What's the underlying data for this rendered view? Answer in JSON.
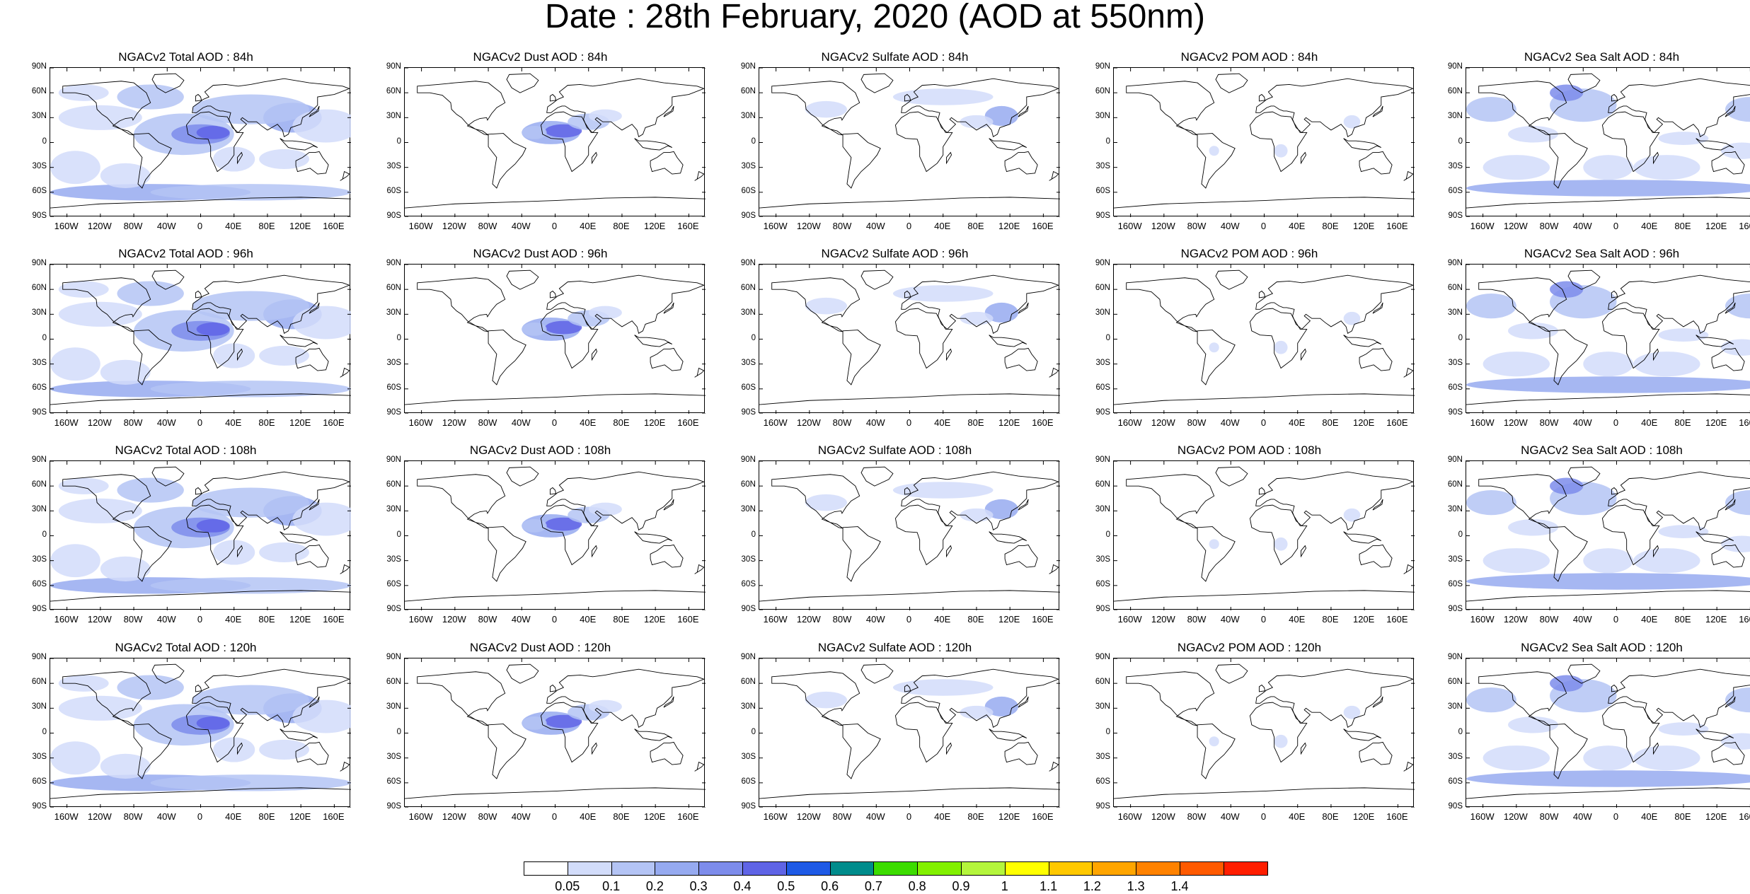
{
  "title": "Date : 28th February, 2020 (AOD at 550nm)",
  "lat_ticks": [
    "90N",
    "60N",
    "30N",
    "0",
    "30S",
    "60S",
    "90S"
  ],
  "lon_ticks": [
    "160W",
    "120W",
    "80W",
    "40W",
    "0",
    "40E",
    "80E",
    "120E",
    "160E"
  ],
  "columns": [
    {
      "key": "total",
      "tint": "total",
      "titles": [
        "NGACv2 Total AOD : 84h",
        "NGACv2 Total AOD : 96h",
        "NGACv2 Total AOD : 108h",
        "NGACv2 Total AOD : 120h"
      ]
    },
    {
      "key": "dust",
      "tint": "dust",
      "titles": [
        "NGACv2 Dust AOD : 84h",
        "NGACv2 Dust AOD : 96h",
        "NGACv2 Dust AOD : 108h",
        "NGACv2 Dust AOD : 120h"
      ]
    },
    {
      "key": "sulfate",
      "tint": "sulfate",
      "titles": [
        "NGACv2 Sulfate AOD : 84h",
        "NGACv2 Sulfate AOD : 96h",
        "NGACv2 Sulfate AOD : 108h",
        "NGACv2 Sulfate AOD : 120h"
      ]
    },
    {
      "key": "pom",
      "tint": "pom",
      "titles": [
        "NGACv2 POM AOD : 84h",
        "NGACv2 POM AOD : 96h",
        "NGACv2 POM AOD : 108h",
        "NGACv2 POM AOD : 120h"
      ]
    },
    {
      "key": "seasalt",
      "tint": "seasalt",
      "titles": [
        "NGACv2 Sea Salt AOD : 84h",
        "NGACv2 Sea Salt AOD : 96h",
        "NGACv2 Sea Salt AOD : 108h",
        "NGACv2 Sea Salt  AOD : 120h"
      ]
    }
  ],
  "colorbar": {
    "colors": [
      "#ffffff",
      "#d2dcfa",
      "#b4c4f5",
      "#96aaf0",
      "#7d8ceb",
      "#5f64e6",
      "#1e5ae6",
      "#008c8c",
      "#3cdc00",
      "#82f000",
      "#b4f53c",
      "#ffff00",
      "#ffc800",
      "#ffa500",
      "#ff8200",
      "#ff5a00",
      "#ff1e00"
    ],
    "labels": [
      "0.05",
      "0.1",
      "0.2",
      "0.3",
      "0.4",
      "0.5",
      "0.6",
      "0.7",
      "0.8",
      "0.9",
      "1",
      "1.1",
      "1.2",
      "1.3",
      "1.4"
    ]
  }
}
